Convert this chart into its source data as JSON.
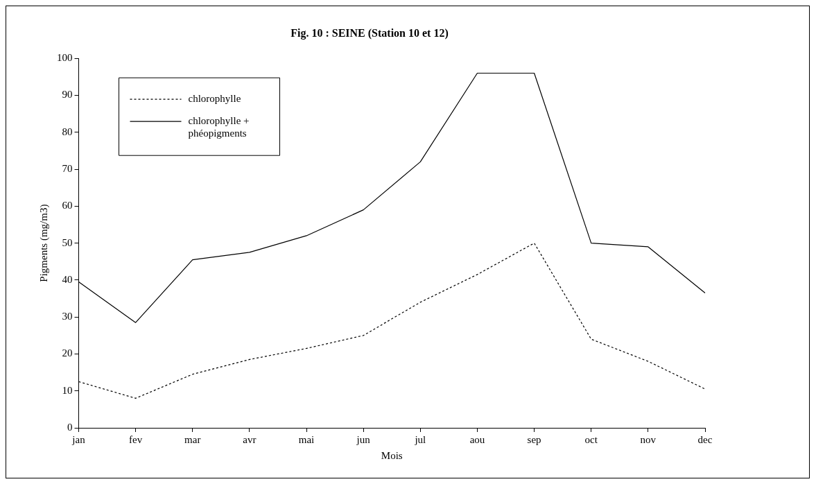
{
  "chart_data": {
    "type": "line",
    "title": "Fig. 10 : SEINE (Station 10 et 12)",
    "xlabel": "Mois",
    "ylabel": "Pigments (mg/m3)",
    "categories": [
      "jan",
      "fev",
      "mar",
      "avr",
      "mai",
      "jun",
      "jul",
      "aou",
      "sep",
      "oct",
      "nov",
      "dec"
    ],
    "series": [
      {
        "name": "chlorophylle",
        "color": "#000000",
        "line_style": "dashed",
        "values": [
          12.5,
          8,
          14.5,
          18.5,
          21.5,
          25,
          34,
          41.5,
          50,
          24,
          18,
          10.5
        ]
      },
      {
        "name": "chlorophylle + phéopigments",
        "color": "#000000",
        "line_style": "solid",
        "values": [
          39.5,
          28.5,
          45.5,
          47.5,
          52,
          59,
          72,
          96,
          96,
          50,
          49,
          36.5
        ]
      }
    ],
    "ylim": [
      0,
      100
    ],
    "yticks": [
      0,
      10,
      20,
      30,
      40,
      50,
      60,
      70,
      80,
      90,
      100
    ],
    "grid": false,
    "legend": "top left",
    "marker": "none"
  }
}
